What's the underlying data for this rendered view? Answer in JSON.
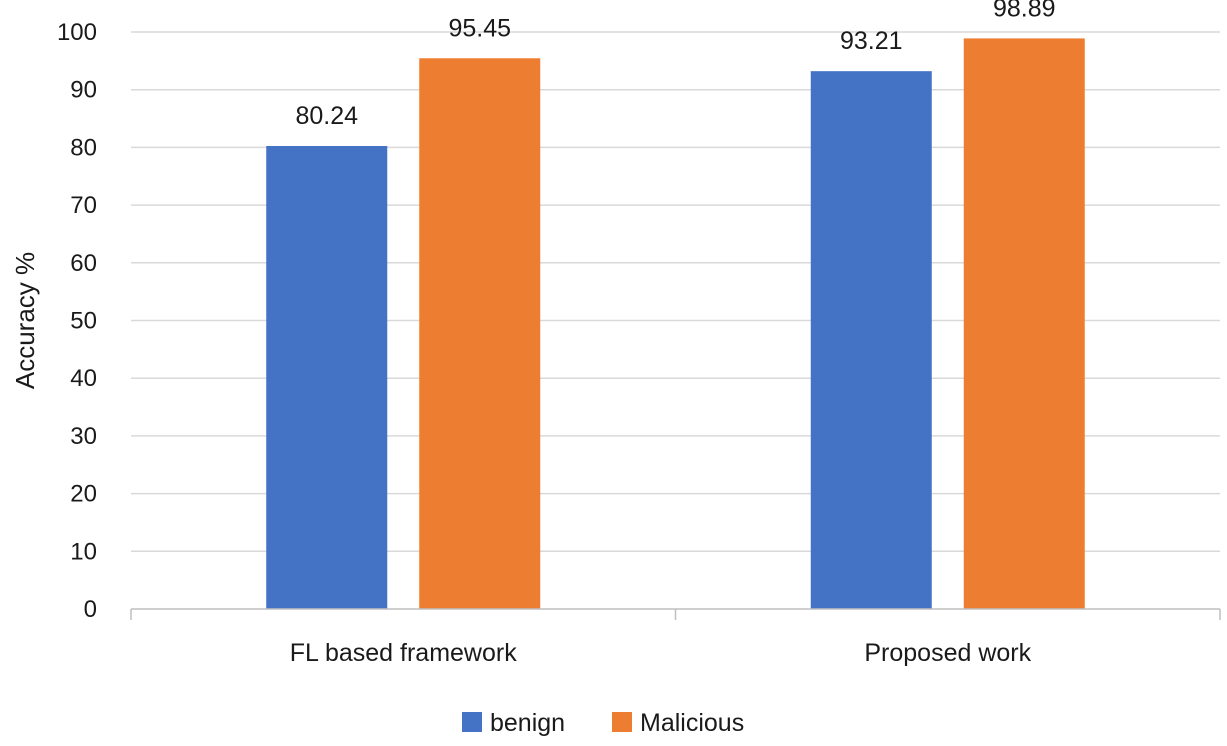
{
  "chart_data": {
    "type": "bar",
    "title": "",
    "xlabel": "",
    "ylabel": "Accuracy %",
    "ylim": [
      0,
      100
    ],
    "y_ticks": [
      0,
      10,
      20,
      30,
      40,
      50,
      60,
      70,
      80,
      90,
      100
    ],
    "grid": true,
    "legend_position": "bottom",
    "categories": [
      "FL based framework",
      "Proposed work"
    ],
    "series": [
      {
        "name": "benign",
        "color": "#4472C4",
        "values": [
          80.24,
          93.21
        ],
        "labels": [
          "80.24",
          "93.21"
        ]
      },
      {
        "name": "Malicious",
        "color": "#ED7D31",
        "values": [
          95.45,
          98.89
        ],
        "labels": [
          "95.45",
          "98.89"
        ]
      }
    ]
  }
}
